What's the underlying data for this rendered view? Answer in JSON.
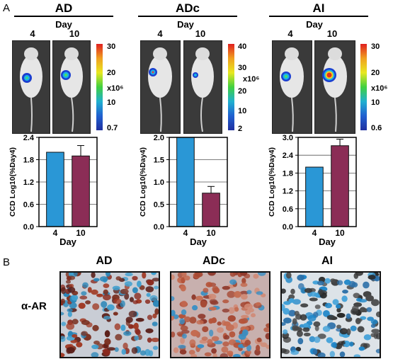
{
  "panel_a": {
    "letter": "A",
    "day_label": "Day",
    "groups": [
      {
        "title": "AD",
        "days": [
          "4",
          "10"
        ],
        "colorbar_ticks": [
          "30",
          "20",
          "x10⁶",
          "10",
          "0.7"
        ]
      },
      {
        "title": "ADc",
        "days": [
          "4",
          "10"
        ],
        "colorbar_ticks": [
          "40",
          "30",
          "x10⁶",
          "20",
          "10",
          "2"
        ]
      },
      {
        "title": "AI",
        "days": [
          "4",
          "10"
        ],
        "colorbar_ticks": [
          "30",
          "20",
          "x10⁶",
          "10",
          "0.6"
        ]
      }
    ]
  },
  "chart_data": [
    {
      "type": "bar",
      "categories": [
        "4",
        "10"
      ],
      "values": [
        2.0,
        1.9
      ],
      "error": [
        0,
        0.28
      ],
      "ylim": [
        0,
        2.4
      ],
      "yticks": [
        "0.0",
        "0.6",
        "1.2",
        "1.8",
        "2.4"
      ],
      "ylabel": "CCD Log10(%Day4)",
      "xlabel": "Day",
      "colors": [
        "#2a97d6",
        "#8b2d56"
      ]
    },
    {
      "type": "bar",
      "categories": [
        "4",
        "10"
      ],
      "values": [
        2.0,
        0.75
      ],
      "error": [
        0,
        0.15
      ],
      "ylim": [
        0,
        2.0
      ],
      "yticks": [
        "0.0",
        "0.5",
        "1.0",
        "1.5",
        "2.0"
      ],
      "ylabel": "CCD Log10(%Day4)",
      "xlabel": "Day",
      "colors": [
        "#2a97d6",
        "#8b2d56"
      ]
    },
    {
      "type": "bar",
      "categories": [
        "4",
        "10"
      ],
      "values": [
        2.0,
        2.72
      ],
      "error": [
        0,
        0.22
      ],
      "ylim": [
        0,
        3.0
      ],
      "yticks": [
        "0.0",
        "0.6",
        "1.2",
        "1.8",
        "2.4",
        "3.0"
      ],
      "ylabel": "CCD Log10(%Day4)",
      "xlabel": "Day",
      "colors": [
        "#2a97d6",
        "#8b2d56"
      ]
    }
  ],
  "panel_b": {
    "letter": "B",
    "row_label": "α-AR",
    "titles": [
      "AD",
      "ADc",
      "AI"
    ]
  }
}
